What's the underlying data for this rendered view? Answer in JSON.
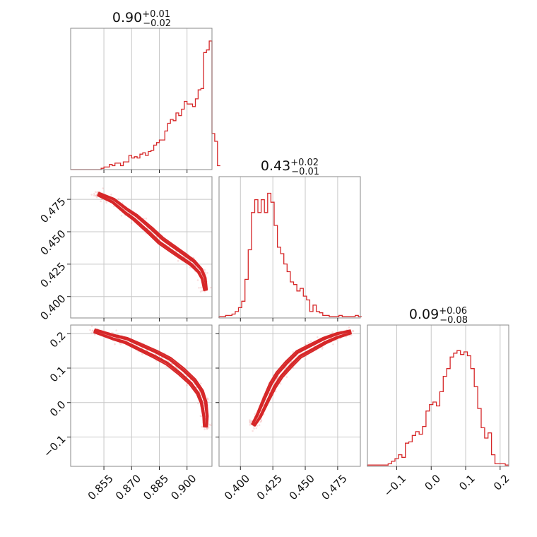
{
  "chart_data": {
    "type": "corner",
    "color": "#d62728",
    "params": [
      {
        "id": "p0",
        "median_label": "0.90",
        "err_plus": "+0.01",
        "err_minus": "−0.02",
        "range": [
          0.837,
          0.9135
        ],
        "ticks": [
          0.855,
          0.87,
          0.885,
          0.9
        ],
        "tick_labels": [
          "0.855",
          "0.870",
          "0.885",
          "0.900"
        ],
        "hist_max": 1.0,
        "hist": {
          "x0": 0.837,
          "dx": 0.0015,
          "values": [
            0,
            0,
            0,
            0,
            0,
            0,
            0,
            0,
            0,
            0,
            0,
            0.01,
            0.02,
            0.02,
            0.04,
            0.03,
            0.05,
            0.05,
            0.03,
            0.06,
            0.06,
            0.11,
            0.09,
            0.1,
            0.09,
            0.12,
            0.13,
            0.11,
            0.14,
            0.15,
            0.19,
            0.21,
            0.23,
            0.23,
            0.3,
            0.36,
            0.39,
            0.38,
            0.44,
            0.42,
            0.47,
            0.53,
            0.51,
            0.51,
            0.49,
            0.55,
            0.62,
            0.63,
            0.91,
            0.93,
            1.0,
            0.28,
            0.22,
            0.03
          ]
        }
      },
      {
        "id": "p1",
        "median_label": "0.43",
        "err_plus": "+0.02",
        "err_minus": "−0.01",
        "range": [
          0.3835,
          0.4925
        ],
        "ticks": [
          0.4,
          0.425,
          0.45,
          0.475
        ],
        "tick_labels": [
          "0.400",
          "0.425",
          "0.450",
          "0.475"
        ],
        "hist_max": 1.0,
        "hist": {
          "x0": 0.3835,
          "dx": 0.0025,
          "values": [
            0.01,
            0.01,
            0.02,
            0.02,
            0.03,
            0.05,
            0.08,
            0.13,
            0.3,
            0.53,
            0.82,
            0.92,
            0.82,
            0.92,
            0.82,
            0.97,
            0.9,
            0.72,
            0.55,
            0.5,
            0.42,
            0.36,
            0.28,
            0.26,
            0.21,
            0.23,
            0.17,
            0.14,
            0.05,
            0.1,
            0.05,
            0.04,
            0.02,
            0.02,
            0.01,
            0.01,
            0.01,
            0.02,
            0.01,
            0.01,
            0.01,
            0.01,
            0.02,
            0.01
          ]
        }
      },
      {
        "id": "p2",
        "median_label": "0.09",
        "err_plus": "+0.06",
        "err_minus": "−0.08",
        "range": [
          -0.185,
          0.225
        ],
        "ticks": [
          -0.1,
          0.0,
          0.1,
          0.2
        ],
        "tick_labels": [
          "−0.1",
          "0.0",
          "0.1",
          "0.2"
        ],
        "hist_max": 1.0,
        "hist": {
          "x0": -0.185,
          "dx": 0.01,
          "values": [
            0.01,
            0.01,
            0.01,
            0.01,
            0.01,
            0.01,
            0.02,
            0.04,
            0.06,
            0.09,
            0.07,
            0.18,
            0.19,
            0.24,
            0.27,
            0.25,
            0.31,
            0.43,
            0.48,
            0.5,
            0.47,
            0.58,
            0.7,
            0.76,
            0.85,
            0.88,
            0.9,
            0.87,
            0.89,
            0.86,
            0.76,
            0.62,
            0.45,
            0.3,
            0.22,
            0.26,
            0.09,
            0.02,
            0.02,
            0.02,
            0.01
          ]
        }
      }
    ],
    "ridges": {
      "p0_p1": [
        [
          0.852,
          0.479
        ],
        [
          0.86,
          0.474
        ],
        [
          0.867,
          0.466
        ],
        [
          0.872,
          0.461
        ],
        [
          0.88,
          0.451
        ],
        [
          0.886,
          0.443
        ],
        [
          0.892,
          0.437
        ],
        [
          0.898,
          0.431
        ],
        [
          0.903,
          0.426
        ],
        [
          0.907,
          0.42
        ],
        [
          0.909,
          0.414
        ],
        [
          0.91,
          0.405
        ]
      ],
      "p0_p2": [
        [
          0.85,
          0.208
        ],
        [
          0.86,
          0.19
        ],
        [
          0.867,
          0.18
        ],
        [
          0.875,
          0.16
        ],
        [
          0.883,
          0.14
        ],
        [
          0.89,
          0.12
        ],
        [
          0.897,
          0.09
        ],
        [
          0.903,
          0.06
        ],
        [
          0.907,
          0.03
        ],
        [
          0.909,
          0.0
        ],
        [
          0.91,
          -0.04
        ],
        [
          0.91,
          -0.07
        ]
      ],
      "p1_p2": [
        [
          0.41,
          -0.065
        ],
        [
          0.414,
          -0.04
        ],
        [
          0.42,
          0.01
        ],
        [
          0.425,
          0.05
        ],
        [
          0.43,
          0.08
        ],
        [
          0.437,
          0.11
        ],
        [
          0.445,
          0.14
        ],
        [
          0.455,
          0.16
        ],
        [
          0.465,
          0.18
        ],
        [
          0.475,
          0.195
        ],
        [
          0.485,
          0.205
        ]
      ]
    }
  }
}
